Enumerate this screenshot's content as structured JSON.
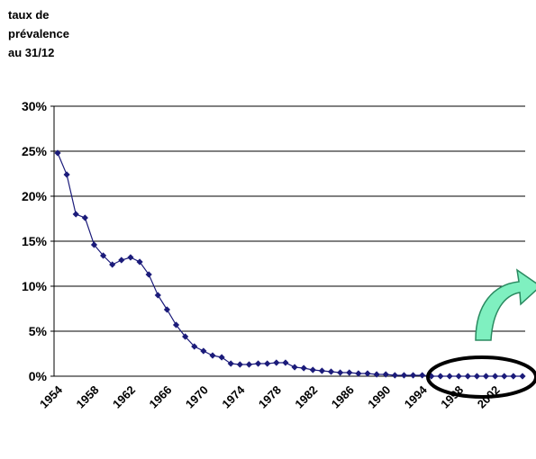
{
  "chart_data": {
    "type": "line",
    "ylabel": "taux de\nprévalence\nau 31/12",
    "xlabel": "",
    "title": "",
    "ylim": [
      0,
      30
    ],
    "yticks": [
      "0%",
      "5%",
      "10%",
      "15%",
      "20%",
      "25%",
      "30%"
    ],
    "xlim": [
      1954,
      2005
    ],
    "xtick_labels": [
      "1954",
      "1958",
      "1962",
      "1966",
      "1970",
      "1974",
      "1978",
      "1982",
      "1986",
      "1990",
      "1994",
      "1998",
      "2002"
    ],
    "grid": true,
    "legend": "none",
    "series": [
      {
        "color": "#1b1b7a",
        "marker": "diamond",
        "x": [
          1954,
          1955,
          1956,
          1957,
          1958,
          1959,
          1960,
          1961,
          1962,
          1963,
          1964,
          1965,
          1966,
          1967,
          1968,
          1969,
          1970,
          1971,
          1972,
          1973,
          1974,
          1975,
          1976,
          1977,
          1978,
          1979,
          1980,
          1981,
          1982,
          1983,
          1984,
          1985,
          1986,
          1987,
          1988,
          1989,
          1990,
          1991,
          1992,
          1993,
          1994,
          1995,
          1996,
          1997,
          1998,
          1999,
          2000,
          2001,
          2002,
          2003,
          2004,
          2005
        ],
        "y": [
          24.8,
          22.4,
          18.0,
          17.6,
          14.6,
          13.4,
          12.4,
          12.9,
          13.2,
          12.7,
          11.3,
          9.0,
          7.4,
          5.7,
          4.4,
          3.3,
          2.8,
          2.3,
          2.1,
          1.4,
          1.3,
          1.3,
          1.4,
          1.4,
          1.5,
          1.5,
          1.0,
          0.9,
          0.7,
          0.6,
          0.5,
          0.4,
          0.4,
          0.3,
          0.3,
          0.2,
          0.2,
          0.1,
          0.1,
          0.1,
          0.1,
          0.0,
          0.0,
          0.0,
          0.0,
          0.0,
          0.0,
          0.0,
          0.0,
          0.0,
          0.0,
          0.0
        ]
      }
    ]
  },
  "annotations": {
    "arrow_color": "#7ff0c0",
    "ellipse_color": "#000000"
  }
}
